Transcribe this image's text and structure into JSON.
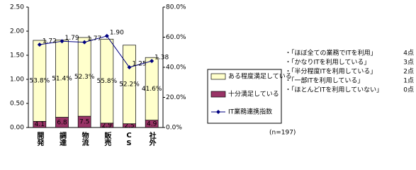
{
  "chart_data": {
    "type": "bar-line",
    "categories": [
      "開発",
      "調達",
      "物流",
      "販売",
      "CS",
      "社外"
    ],
    "series": [
      {
        "name": "十分満足している",
        "color": "#993366",
        "axis": "y2",
        "values": [
          4.1,
          6.8,
          7.5,
          2.9,
          2.5,
          4.9
        ]
      },
      {
        "name": "ある程度満足している",
        "color": "#ffffcc",
        "axis": "y2",
        "values": [
          53.8,
          51.4,
          52.3,
          55.8,
          52.2,
          41.6
        ],
        "value_labels": [
          "53.8%",
          "51.4%",
          "52.3%",
          "55.8%",
          "52.2%",
          "41.6%"
        ]
      },
      {
        "name": "IT業務連携指数",
        "color": "#000080",
        "type": "line",
        "values": [
          1.72,
          1.79,
          1.77,
          1.9,
          1.25,
          1.38
        ],
        "value_labels": [
          "1.72",
          "1.79",
          "1.77",
          "1.90",
          "1.25",
          "1.38"
        ]
      }
    ],
    "ylim": [
      0,
      2.5
    ],
    "yticks": [
      {
        "value": 0,
        "label": "0.00"
      },
      {
        "value": 0.5,
        "label": "0.50"
      },
      {
        "value": 1,
        "label": "1.00"
      },
      {
        "value": 1.5,
        "label": "1.50"
      },
      {
        "value": 2,
        "label": "2.00"
      },
      {
        "value": 2.5,
        "label": "2.50"
      }
    ],
    "y2lim": [
      0,
      80
    ],
    "y2ticks": [
      {
        "value": 0,
        "label": "0.0%"
      },
      {
        "value": 20,
        "label": "20.0%"
      },
      {
        "value": 40,
        "label": "40.0%"
      },
      {
        "value": 60,
        "label": "60.0%"
      },
      {
        "value": 80,
        "label": "80.0%"
      }
    ],
    "grid": false,
    "annotation": "(n=197)",
    "notes": [
      {
        "text": "・「ほぼ全ての業務でITを利用」",
        "points": "4点"
      },
      {
        "text": "・「かなりITを利用している」",
        "points": "3点"
      },
      {
        "text": "・「半分程度ITを利用している」",
        "points": "2点"
      },
      {
        "text": "・「一部ITを利用している」",
        "points": "1点"
      },
      {
        "text": "・「ほとんどITを利用していない」",
        "points": "0点"
      }
    ]
  }
}
